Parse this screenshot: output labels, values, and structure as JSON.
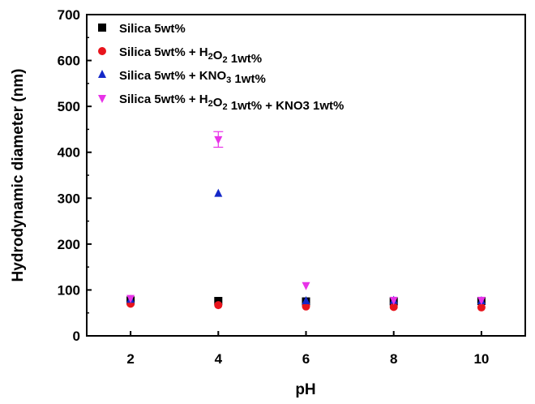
{
  "chart_data": {
    "type": "scatter",
    "xlabel": "pH",
    "ylabel": "Hydrodynamic diameter (nm)",
    "xlim": [
      1,
      11
    ],
    "ylim": [
      0,
      700
    ],
    "xticks": [
      2,
      4,
      6,
      8,
      10
    ],
    "yticks": [
      0,
      100,
      200,
      300,
      400,
      500,
      600,
      700
    ],
    "grid": false,
    "legend_position": "top-left",
    "series": [
      {
        "name": "Silica 5wt%",
        "legend": [
          {
            "t": "Silica 5wt%"
          }
        ],
        "marker": "square",
        "color": "#000000",
        "x": [
          2,
          4,
          6,
          8,
          10
        ],
        "y": [
          77,
          76,
          75,
          75,
          76
        ],
        "err": [
          0,
          0,
          0,
          0,
          0
        ]
      },
      {
        "name": "Silica 5wt% + H2O2 1wt%",
        "legend": [
          {
            "t": "Silica 5wt% + H"
          },
          {
            "t": "2",
            "sub": true
          },
          {
            "t": "O"
          },
          {
            "t": "2",
            "sub": true
          },
          {
            "t": " 1wt%"
          }
        ],
        "marker": "circle",
        "color": "#e8141c",
        "x": [
          2,
          4,
          6,
          8,
          10
        ],
        "y": [
          70,
          67,
          64,
          63,
          62
        ],
        "err": [
          0,
          0,
          0,
          0,
          0
        ]
      },
      {
        "name": "Silica 5wt% + KNO3 1wt%",
        "legend": [
          {
            "t": "Silica 5wt% + KNO"
          },
          {
            "t": "3",
            "sub": true
          },
          {
            "t": " 1wt%"
          }
        ],
        "marker": "triangle-up",
        "color": "#1428c8",
        "x": [
          2,
          4,
          6,
          8,
          10
        ],
        "y": [
          79,
          310,
          76,
          77,
          76
        ],
        "err": [
          0,
          0,
          0,
          0,
          0
        ]
      },
      {
        "name": "Silica 5wt% + H2O2 1wt% + KNO3 1wt%",
        "legend": [
          {
            "t": "Silica 5wt% + H"
          },
          {
            "t": "2",
            "sub": true
          },
          {
            "t": "O"
          },
          {
            "t": "2",
            "sub": true
          },
          {
            "t": " 1wt% + KNO3 1wt%"
          }
        ],
        "marker": "triangle-down",
        "color": "#e832e8",
        "x": [
          2,
          4,
          6,
          8,
          10
        ],
        "y": [
          82,
          428,
          110,
          78,
          78
        ],
        "err": [
          0,
          17,
          0,
          0,
          0
        ]
      }
    ]
  }
}
